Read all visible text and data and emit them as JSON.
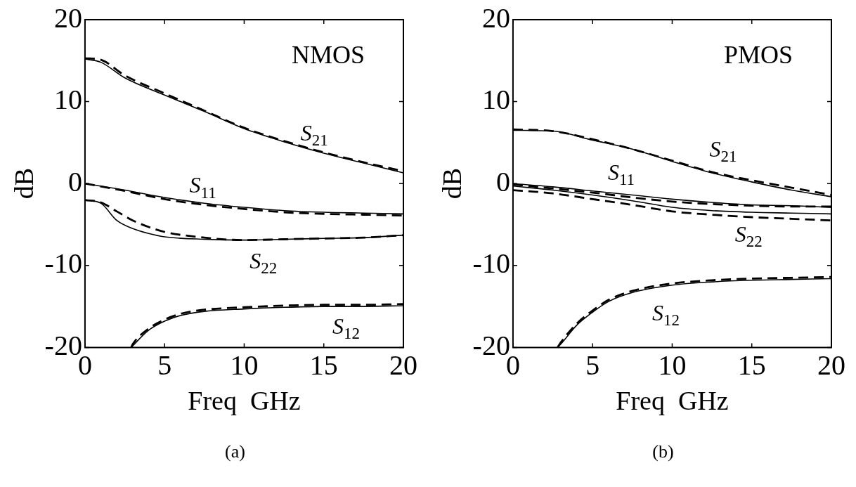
{
  "chart_data": [
    {
      "type": "line",
      "title": "NMOS",
      "xlabel": "Freq  GHz",
      "ylabel": "dB",
      "xlim": [
        0,
        20
      ],
      "xticks": [
        0,
        5,
        10,
        15,
        20
      ],
      "ylim": [
        -20,
        20
      ],
      "yticks": [
        -20,
        -10,
        0,
        10,
        20
      ],
      "marker": "none",
      "grid": false,
      "legend": false,
      "series": [
        {
          "color": "#000000",
          "line_style": "solid",
          "x": [
            0,
            1,
            2.5,
            5,
            7.5,
            10,
            12.5,
            15,
            17.5,
            20
          ],
          "values": [
            15.2,
            14.8,
            12.9,
            10.8,
            8.8,
            6.7,
            5.1,
            3.7,
            2.5,
            1.3
          ]
        },
        {
          "color": "#000000",
          "line_style": "dashed",
          "x": [
            0,
            1,
            2.5,
            5,
            7.5,
            10,
            12.5,
            15,
            17.5,
            20
          ],
          "values": [
            15.3,
            15.1,
            13.2,
            11.0,
            8.9,
            6.8,
            5.2,
            3.8,
            2.6,
            1.5
          ]
        },
        {
          "color": "#000000",
          "line_style": "solid",
          "x": [
            0,
            2.5,
            5,
            7.5,
            10,
            12.5,
            15,
            17.5,
            20
          ],
          "values": [
            0,
            -0.8,
            -1.7,
            -2.4,
            -2.9,
            -3.3,
            -3.5,
            -3.6,
            -3.7
          ]
        },
        {
          "color": "#000000",
          "line_style": "dashed",
          "x": [
            0,
            2.5,
            5,
            7.5,
            10,
            12.5,
            15,
            17.5,
            20
          ],
          "values": [
            0,
            -0.9,
            -1.9,
            -2.6,
            -3.1,
            -3.5,
            -3.7,
            -3.8,
            -3.9
          ]
        },
        {
          "color": "#000000",
          "line_style": "solid",
          "x": [
            0,
            1,
            2,
            3,
            4,
            5,
            7.5,
            10,
            12.5,
            15,
            17.5,
            20
          ],
          "values": [
            -2.0,
            -2.4,
            -4.5,
            -5.5,
            -6.1,
            -6.5,
            -6.8,
            -6.9,
            -6.8,
            -6.7,
            -6.6,
            -6.3
          ]
        },
        {
          "color": "#000000",
          "line_style": "dashed",
          "x": [
            0,
            1,
            2,
            3,
            4,
            5,
            7.5,
            10,
            12.5,
            15,
            17.5,
            20
          ],
          "values": [
            -2.0,
            -2.3,
            -3.4,
            -4.5,
            -5.3,
            -5.9,
            -6.6,
            -6.9,
            -6.8,
            -6.7,
            -6.6,
            -6.3
          ]
        },
        {
          "color": "#000000",
          "line_style": "solid",
          "x": [
            2.9,
            3,
            4,
            5,
            6,
            7.5,
            10,
            12.5,
            15,
            17.5,
            20
          ],
          "values": [
            -20,
            -19.8,
            -17.9,
            -16.8,
            -16.1,
            -15.6,
            -15.3,
            -15.1,
            -15.0,
            -15.0,
            -14.9
          ]
        },
        {
          "color": "#000000",
          "line_style": "dashed",
          "x": [
            2.9,
            3,
            4,
            5,
            6,
            7.5,
            10,
            12.5,
            15,
            17.5,
            20
          ],
          "values": [
            -20,
            -19.6,
            -17.7,
            -16.6,
            -15.9,
            -15.4,
            -15.1,
            -14.9,
            -14.8,
            -14.8,
            -14.7
          ]
        }
      ],
      "annotations": [
        "S$_{21}$",
        "S$_{11}$",
        "S$_{22}$",
        "S$_{12}$",
        "(a)"
      ]
    },
    {
      "type": "line",
      "title": "PMOS",
      "xlabel": "Freq  GHz",
      "ylabel": "dB",
      "xlim": [
        0,
        20
      ],
      "xticks": [
        0,
        5,
        10,
        15,
        20
      ],
      "ylim": [
        -20,
        20
      ],
      "yticks": [
        -20,
        -10,
        0,
        10,
        20
      ],
      "marker": "none",
      "grid": false,
      "legend": false,
      "series": [
        {
          "color": "#000000",
          "line_style": "solid",
          "x": [
            0,
            2.5,
            5,
            7.5,
            10,
            12.5,
            15,
            17.5,
            20
          ],
          "values": [
            6.5,
            6.4,
            5.3,
            4.2,
            2.7,
            1.3,
            0.2,
            -0.8,
            -1.6
          ]
        },
        {
          "color": "#000000",
          "line_style": "dashed",
          "x": [
            0,
            2.5,
            5,
            7.5,
            10,
            12.5,
            15,
            17.5,
            20
          ],
          "values": [
            6.6,
            6.4,
            5.4,
            4.2,
            2.8,
            1.4,
            0.4,
            -0.5,
            -1.4
          ]
        },
        {
          "color": "#000000",
          "line_style": "solid",
          "x": [
            0,
            2.5,
            5,
            7.5,
            10,
            12.5,
            15,
            17.5,
            20
          ],
          "values": [
            0,
            -0.4,
            -0.9,
            -1.4,
            -1.9,
            -2.3,
            -2.6,
            -2.7,
            -2.9
          ]
        },
        {
          "color": "#000000",
          "line_style": "dashed",
          "x": [
            0,
            2.5,
            5,
            7.5,
            10,
            12.5,
            15,
            17.5,
            20
          ],
          "values": [
            -0.1,
            -0.6,
            -1.1,
            -1.7,
            -2.2,
            -2.5,
            -2.7,
            -2.8,
            -2.8
          ]
        },
        {
          "color": "#000000",
          "line_style": "solid",
          "x": [
            0,
            2.5,
            5,
            7.5,
            10,
            12.5,
            15,
            17.5,
            20
          ],
          "values": [
            -0.3,
            -0.8,
            -1.4,
            -2.1,
            -2.9,
            -3.3,
            -3.5,
            -3.6,
            -3.7
          ]
        },
        {
          "color": "#000000",
          "line_style": "dashed",
          "x": [
            0,
            2.5,
            5,
            7.5,
            10,
            12.5,
            15,
            17.5,
            20
          ],
          "values": [
            -0.8,
            -1.2,
            -1.9,
            -2.6,
            -3.4,
            -3.8,
            -4.1,
            -4.3,
            -4.5
          ]
        },
        {
          "color": "#000000",
          "line_style": "solid",
          "x": [
            2.8,
            3,
            4,
            5,
            6,
            7.5,
            10,
            12.5,
            15,
            17.5,
            20
          ],
          "values": [
            -20,
            -19.6,
            -17.3,
            -15.7,
            -14.4,
            -13.3,
            -12.4,
            -12.0,
            -11.8,
            -11.7,
            -11.6
          ]
        },
        {
          "color": "#000000",
          "line_style": "dashed",
          "x": [
            2.8,
            3,
            4,
            5,
            6,
            7.5,
            10,
            12.5,
            15,
            17.5,
            20
          ],
          "values": [
            -20,
            -19.4,
            -17.1,
            -15.5,
            -14.2,
            -13.1,
            -12.2,
            -11.8,
            -11.6,
            -11.5,
            -11.4
          ]
        }
      ],
      "annotations": [
        "S$_{21}$",
        "S$_{11}$",
        "S$_{22}$",
        "S$_{12}$",
        "(b)"
      ]
    }
  ]
}
